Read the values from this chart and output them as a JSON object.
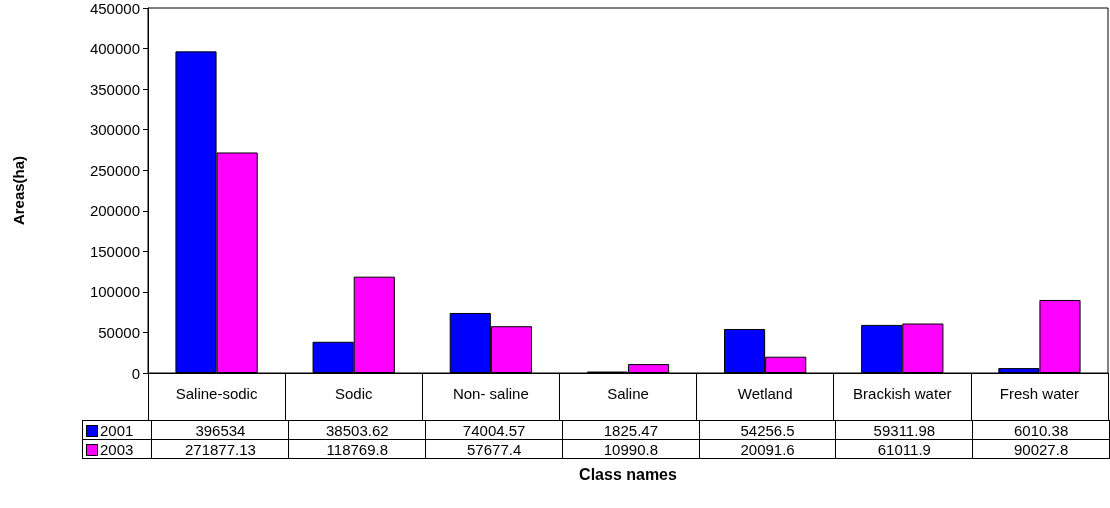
{
  "chart_data": {
    "type": "bar",
    "xlabel": "Class names",
    "ylabel": "Areas(ha)",
    "categories": [
      "Saline-sodic",
      "Sodic",
      "Non- saline",
      "Saline",
      "Wetland",
      "Brackish water",
      "Fresh water"
    ],
    "series": [
      {
        "name": "2001",
        "color": "#0000ff",
        "values": [
          396534,
          38503.62,
          74004.57,
          1825.47,
          54256.5,
          59311.98,
          6010.38
        ]
      },
      {
        "name": "2003",
        "color": "#ff00ff",
        "values": [
          271877.13,
          118769.8,
          57677.4,
          10990.8,
          20091.6,
          61011.9,
          90027.8
        ]
      }
    ],
    "ylim": [
      0,
      450000
    ],
    "yticks": [
      0,
      50000,
      100000,
      150000,
      200000,
      250000,
      300000,
      350000,
      400000,
      450000
    ],
    "grid": false,
    "legend": "bottom left",
    "data_labels": true
  }
}
